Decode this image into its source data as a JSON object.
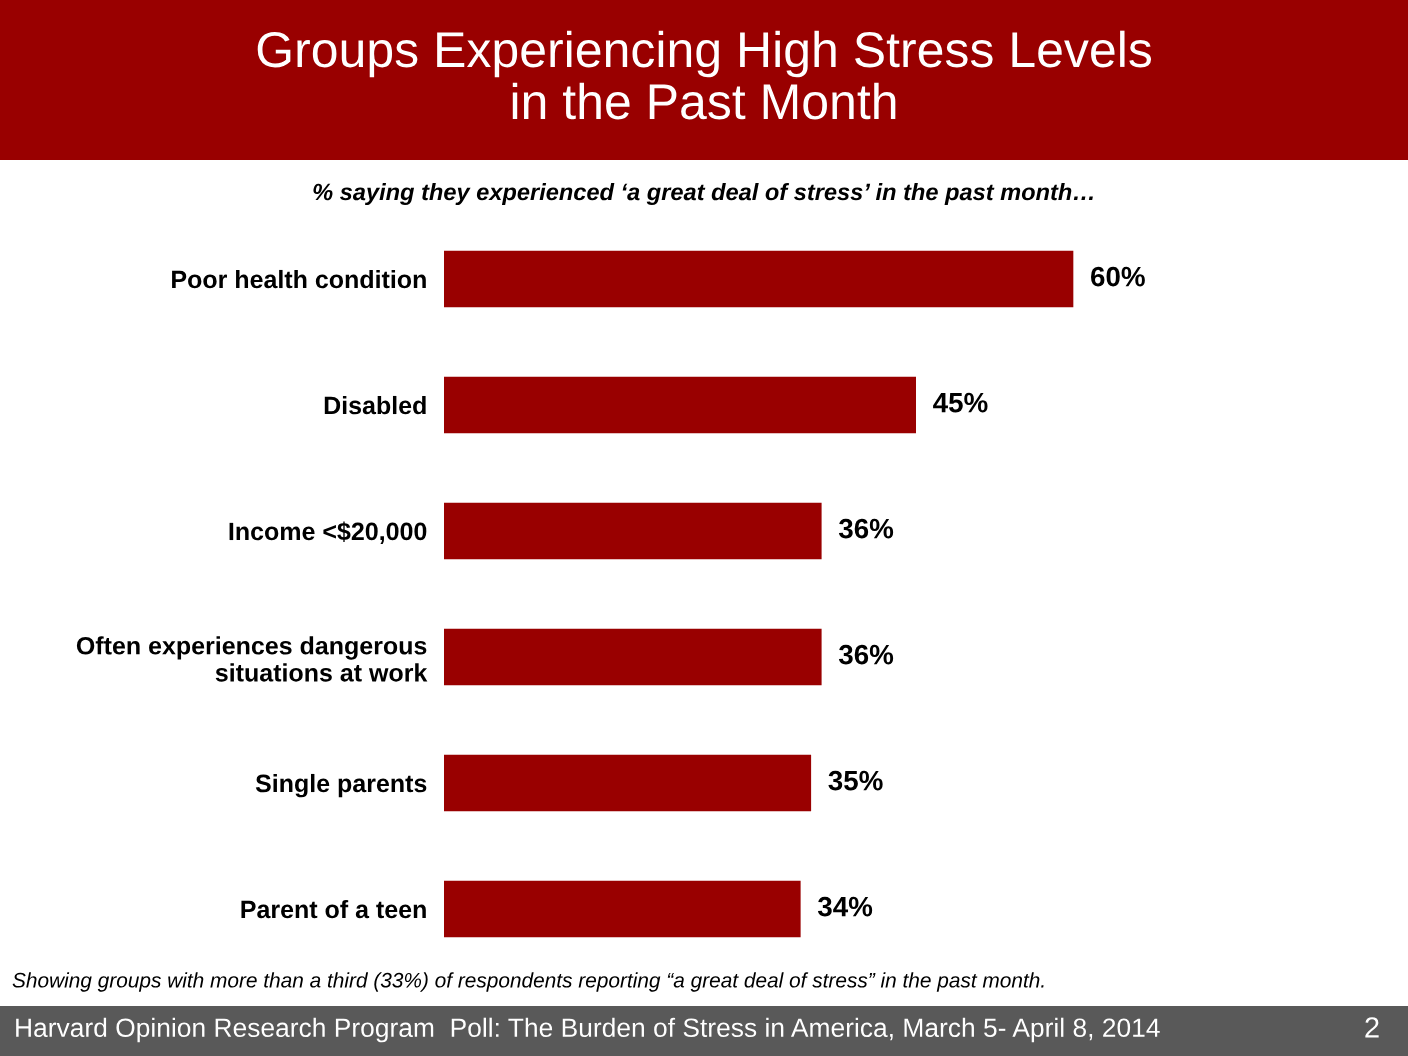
{
  "chart_data": {
    "type": "bar",
    "orientation": "horizontal",
    "title": "Groups Experiencing High Stress Levels\nin the Past Month",
    "subtitle": "% saying they experienced ‘a great deal of stress’ in the past month…",
    "categories": [
      "Poor health condition",
      "Disabled",
      "Income <$20,000",
      "Often experiences dangerous\nsituations at work",
      "Single parents",
      "Parent of a teen"
    ],
    "values": [
      60,
      45,
      36,
      36,
      35,
      34
    ],
    "color": "#990000",
    "value_labels": [
      "60%",
      "45%",
      "36%",
      "36%",
      "35%",
      "34%"
    ],
    "tick_labels": "y",
    "annotations": [
      "Showing groups with more than a third (33%) of respondents reporting “a great deal of stress” in the past month.",
      "Harvard Opinion Research Program  Poll: The Burden of Stress in America, March 5- April 8, 2014",
      "2"
    ]
  }
}
